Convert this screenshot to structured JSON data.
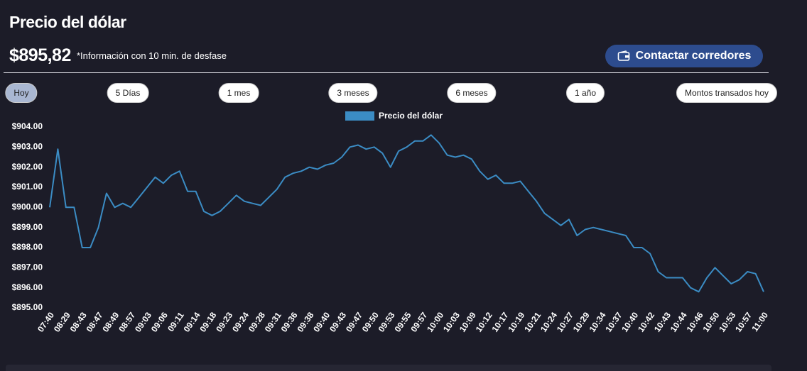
{
  "header": {
    "title": "Precio del dólar",
    "price": "$895,82",
    "note": "*Información con 10 min. de desfase",
    "button": "Contactar corredores"
  },
  "tabs": [
    "Hoy",
    "5 Días",
    "1 mes",
    "3 meses",
    "6 meses",
    "1 año",
    "Montos transados hoy"
  ],
  "chart_data": {
    "type": "line",
    "categories": [
      "07:40",
      null,
      "08:29",
      null,
      "08:43",
      null,
      "08:47",
      null,
      "08:49",
      null,
      "08:57",
      null,
      "09:03",
      null,
      "09:06",
      null,
      "09:11",
      null,
      "09:14",
      null,
      "09:18",
      null,
      "09:23",
      null,
      "09:24",
      null,
      "09:28",
      null,
      "09:31",
      null,
      "09:36",
      null,
      "09:38",
      null,
      "09:40",
      null,
      "09:43",
      null,
      "09:47",
      null,
      "09:50",
      null,
      "09:53",
      null,
      "09:55",
      null,
      "09:57",
      null,
      "10:00",
      null,
      "10:03",
      null,
      "10:09",
      null,
      "10:12",
      null,
      "10:17",
      null,
      "10:19",
      null,
      "10:21",
      null,
      "10:24",
      null,
      "10:27",
      null,
      "10:29",
      null,
      "10:34",
      null,
      "10:37",
      null,
      "10:40",
      null,
      "10:42",
      null,
      "10:43",
      null,
      "10:44",
      null,
      "10:46",
      null,
      "10:50",
      null,
      "10:53",
      null,
      "10:57",
      null,
      "11:00"
    ],
    "series": [
      {
        "name": "Precio del dólar",
        "color": "#3b8cc4",
        "values": [
          900.0,
          902.9,
          900.0,
          900.0,
          898.0,
          898.0,
          899.0,
          900.7,
          900.0,
          900.2,
          900.0,
          900.5,
          901.0,
          901.5,
          901.2,
          901.6,
          901.8,
          900.8,
          900.8,
          899.8,
          899.6,
          899.8,
          900.2,
          900.6,
          900.3,
          900.2,
          900.1,
          900.5,
          900.9,
          901.5,
          901.7,
          901.8,
          902.0,
          901.9,
          902.1,
          902.2,
          902.5,
          903.0,
          903.1,
          902.9,
          903.0,
          902.7,
          902.0,
          902.8,
          903.0,
          903.3,
          903.3,
          903.6,
          903.2,
          902.6,
          902.5,
          902.6,
          902.4,
          901.8,
          901.4,
          901.6,
          901.2,
          901.2,
          901.3,
          900.8,
          900.3,
          899.7,
          899.4,
          899.1,
          899.4,
          898.6,
          898.9,
          899.0,
          898.9,
          898.8,
          898.7,
          898.6,
          898.0,
          898.0,
          897.7,
          896.8,
          896.5,
          896.5,
          896.5,
          896.0,
          895.8,
          896.5,
          897.0,
          896.6,
          896.2,
          896.4,
          896.8,
          896.7,
          895.8
        ]
      }
    ],
    "ylim": [
      895,
      904
    ],
    "yticks": [
      {
        "value": 895,
        "label": "$895.00"
      },
      {
        "value": 896,
        "label": "$896.00"
      },
      {
        "value": 897,
        "label": "$897.00"
      },
      {
        "value": 898,
        "label": "$898.00"
      },
      {
        "value": 899,
        "label": "$899.00"
      },
      {
        "value": 900,
        "label": "$900.00"
      },
      {
        "value": 901,
        "label": "$901.00"
      },
      {
        "value": 902,
        "label": "$902.00"
      },
      {
        "value": 903,
        "label": "$903.00"
      },
      {
        "value": 904,
        "label": "$904.00"
      }
    ],
    "grid": false,
    "legend": "top"
  }
}
